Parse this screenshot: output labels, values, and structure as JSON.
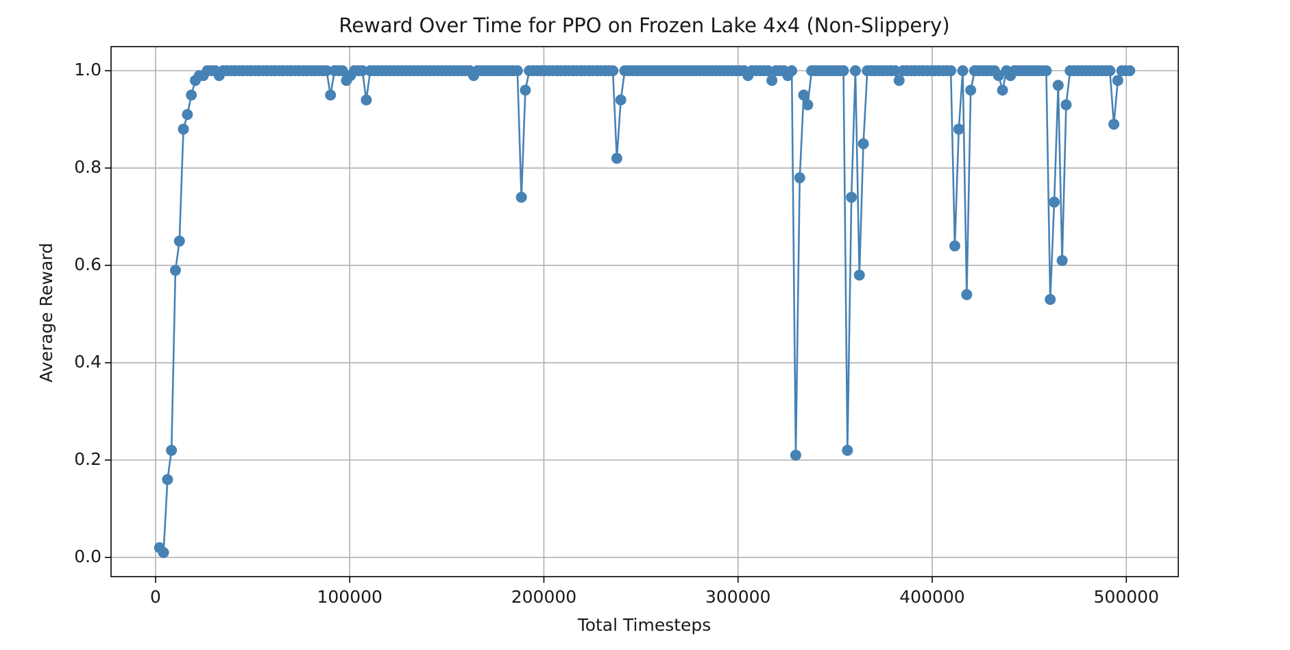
{
  "chart_data": {
    "type": "line",
    "title": "Reward Over Time for PPO on Frozen Lake 4x4 (Non-Slippery)",
    "x_label": "Total Timesteps",
    "y_label": "Average Reward",
    "xlim": [
      -22938,
      526746
    ],
    "ylim": [
      -0.0395,
      1.0495
    ],
    "xticks": [
      0,
      100000,
      200000,
      300000,
      400000,
      500000
    ],
    "yticks": [
      {
        "value": 0,
        "label": "0.0"
      },
      0.2,
      0.4,
      0.6,
      0.8,
      {
        "value": 1,
        "label": "1.0"
      }
    ],
    "grid": true,
    "marker": "circle",
    "series": [
      {
        "color": "#4682b4",
        "x": [
          2048,
          4096,
          6144,
          8192,
          10240,
          12288,
          14336,
          16384,
          18432,
          20480,
          22528,
          24576,
          26624,
          28672,
          30720,
          32768,
          34816,
          36864,
          38912,
          40960,
          43008,
          45056,
          47104,
          49152,
          51200,
          53248,
          55296,
          57344,
          59392,
          61440,
          63488,
          65536,
          67584,
          69632,
          71680,
          73728,
          75776,
          77824,
          79872,
          81920,
          83968,
          86016,
          88064,
          90112,
          92160,
          94208,
          96256,
          98304,
          100352,
          102400,
          104448,
          106496,
          108544,
          110592,
          112640,
          114688,
          116736,
          118784,
          120832,
          122880,
          124928,
          126976,
          129024,
          131072,
          133120,
          135168,
          137216,
          139264,
          141312,
          143360,
          145408,
          147456,
          149504,
          151552,
          153600,
          155648,
          157696,
          159744,
          161792,
          163840,
          165888,
          167936,
          169984,
          172032,
          174080,
          176128,
          178176,
          180224,
          182272,
          184320,
          186368,
          188416,
          190464,
          192512,
          194560,
          196608,
          198656,
          200704,
          202752,
          204800,
          206848,
          208896,
          210944,
          212992,
          215040,
          217088,
          219136,
          221184,
          223232,
          225280,
          227328,
          229376,
          231424,
          233472,
          235520,
          237568,
          239616,
          241664,
          243712,
          245760,
          247808,
          249856,
          251904,
          253952,
          256000,
          258048,
          260096,
          262144,
          264192,
          266240,
          268288,
          270336,
          272384,
          274432,
          276480,
          278528,
          280576,
          282624,
          284672,
          286720,
          288768,
          290816,
          292864,
          294912,
          296960,
          299008,
          301056,
          303104,
          305152,
          307200,
          309248,
          311296,
          313344,
          315392,
          317440,
          319488,
          321536,
          323584,
          325632,
          327680,
          329728,
          331776,
          333824,
          335872,
          337920,
          339968,
          342016,
          344064,
          346112,
          348160,
          350208,
          352256,
          354304,
          356352,
          358400,
          360448,
          362496,
          364544,
          366592,
          368640,
          370688,
          372736,
          374784,
          376832,
          378880,
          380928,
          382976,
          385024,
          387072,
          389120,
          391168,
          393216,
          395264,
          397312,
          399360,
          401408,
          403456,
          405504,
          407552,
          409600,
          411648,
          413696,
          415744,
          417792,
          419840,
          421888,
          423936,
          425984,
          428032,
          430080,
          432128,
          434176,
          436224,
          438272,
          440320,
          442368,
          444416,
          446464,
          448512,
          450560,
          452608,
          454656,
          456704,
          458752,
          460800,
          462848,
          464896,
          466944,
          468992,
          471040,
          473088,
          475136,
          477184,
          479232,
          481280,
          483328,
          485376,
          487424,
          489472,
          491520,
          493568,
          495616,
          497664,
          499712,
          501760
        ],
        "values": [
          0.02,
          0.01,
          0.16,
          0.22,
          0.59,
          0.65,
          0.88,
          0.91,
          0.95,
          0.98,
          0.99,
          0.99,
          1,
          1,
          1,
          0.99,
          1,
          1,
          1,
          1,
          1,
          1,
          1,
          1,
          1,
          1,
          1,
          1,
          1,
          1,
          1,
          1,
          1,
          1,
          1,
          1,
          1,
          1,
          1,
          1,
          1,
          1,
          1,
          0.95,
          1,
          1,
          1,
          0.98,
          0.99,
          1,
          1,
          1,
          0.94,
          1,
          1,
          1,
          1,
          1,
          1,
          1,
          1,
          1,
          1,
          1,
          1,
          1,
          1,
          1,
          1,
          1,
          1,
          1,
          1,
          1,
          1,
          1,
          1,
          1,
          1,
          0.99,
          1,
          1,
          1,
          1,
          1,
          1,
          1,
          1,
          1,
          1,
          1,
          0.74,
          0.96,
          1,
          1,
          1,
          1,
          1,
          1,
          1,
          1,
          1,
          1,
          1,
          1,
          1,
          1,
          1,
          1,
          1,
          1,
          1,
          1,
          1,
          1,
          0.82,
          0.94,
          1,
          1,
          1,
          1,
          1,
          1,
          1,
          1,
          1,
          1,
          1,
          1,
          1,
          1,
          1,
          1,
          1,
          1,
          1,
          1,
          1,
          1,
          1,
          1,
          1,
          1,
          1,
          1,
          1,
          1,
          1,
          0.99,
          1,
          1,
          1,
          1,
          1,
          0.98,
          1,
          1,
          1,
          0.99,
          1,
          0.21,
          0.78,
          0.95,
          0.93,
          1,
          1,
          1,
          1,
          1,
          1,
          1,
          1,
          1,
          0.22,
          0.74,
          1,
          0.58,
          0.85,
          1,
          1,
          1,
          1,
          1,
          1,
          1,
          1,
          0.98,
          1,
          1,
          1,
          1,
          1,
          1,
          1,
          1,
          1,
          1,
          1,
          1,
          1,
          0.64,
          0.88,
          1,
          0.54,
          0.96,
          1,
          1,
          1,
          1,
          1,
          1,
          0.99,
          0.96,
          1,
          0.99,
          1,
          1,
          1,
          1,
          1,
          1,
          1,
          1,
          1,
          0.53,
          0.73,
          0.97,
          0.61,
          0.93,
          1,
          1,
          1,
          1,
          1,
          1,
          1,
          1,
          1,
          1,
          1,
          0.89,
          0.98,
          1,
          1,
          1
        ]
      }
    ]
  }
}
